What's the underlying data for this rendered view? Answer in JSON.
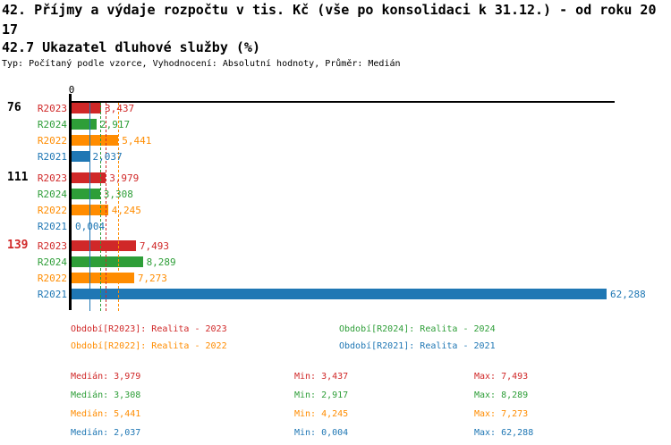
{
  "page": {
    "title": "42. Příjmy a výdaje rozpočtu v tis. Kč (vše po konsolidaci k 31.12.) - od roku 2017",
    "section_title": "42.7 Ukazatel dluhové služby (%)",
    "meta_line": "Typ: Počítaný podle vzorce, Vyhodnocení: Absolutní hodnoty, Průměr: Medián"
  },
  "series_colors": {
    "R2023": "#d02828",
    "R2024": "#2e9e38",
    "R2022": "#ff8c00",
    "R2021": "#1f77b4"
  },
  "chart_data": {
    "type": "bar",
    "orientation": "horizontal",
    "title": "42.7 Ukazatel dluhové služby (%)",
    "axis_origin_label": "0",
    "xlim": [
      0,
      63.5
    ],
    "categories": [
      "76",
      "111",
      "139"
    ],
    "category_label_colors": [
      "#000000",
      "#000000",
      "#d02828"
    ],
    "series": [
      "R2023",
      "R2024",
      "R2022",
      "R2021"
    ],
    "groups": [
      {
        "category": "76",
        "values": [
          {
            "series": "R2023",
            "value": 3.437,
            "label": "3,437"
          },
          {
            "series": "R2024",
            "value": 2.917,
            "label": "2,917"
          },
          {
            "series": "R2022",
            "value": 5.441,
            "label": "5,441"
          },
          {
            "series": "R2021",
            "value": 2.037,
            "label": "2,037"
          }
        ]
      },
      {
        "category": "111",
        "values": [
          {
            "series": "R2023",
            "value": 3.979,
            "label": "3,979"
          },
          {
            "series": "R2024",
            "value": 3.308,
            "label": "3,308"
          },
          {
            "series": "R2022",
            "value": 4.245,
            "label": "4,245"
          },
          {
            "series": "R2021",
            "value": 0.004,
            "label": "0,004"
          }
        ]
      },
      {
        "category": "139",
        "values": [
          {
            "series": "R2023",
            "value": 7.493,
            "label": "7,493"
          },
          {
            "series": "R2024",
            "value": 8.289,
            "label": "8,289"
          },
          {
            "series": "R2022",
            "value": 7.273,
            "label": "7,273"
          },
          {
            "series": "R2021",
            "value": 62.288,
            "label": "62,288"
          }
        ]
      }
    ],
    "median_lines": [
      {
        "series": "R2021",
        "value": 2.037
      },
      {
        "series": "R2024",
        "value": 3.308
      },
      {
        "series": "R2023",
        "value": 3.979
      },
      {
        "series": "R2022",
        "value": 5.441
      }
    ]
  },
  "legend": {
    "items": [
      {
        "text": "Období[R2023]: Realita - 2023",
        "color": "#d02828"
      },
      {
        "text": "Období[R2024]: Realita - 2024",
        "color": "#2e9e38"
      },
      {
        "text": "Období[R2022]: Realita - 2022",
        "color": "#ff8c00"
      },
      {
        "text": "Období[R2021]: Realita - 2021",
        "color": "#1f77b4"
      }
    ]
  },
  "stats": {
    "rows": [
      {
        "median": "Medián: 3,979",
        "min": "Min: 3,437",
        "max": "Max: 7,493",
        "color": "#d02828"
      },
      {
        "median": "Medián: 3,308",
        "min": "Min: 2,917",
        "max": "Max: 8,289",
        "color": "#2e9e38"
      },
      {
        "median": "Medián: 5,441",
        "min": "Min: 4,245",
        "max": "Max: 7,273",
        "color": "#ff8c00"
      },
      {
        "median": "Medián: 2,037",
        "min": "Min: 0,004",
        "max": "Max: 62,288",
        "color": "#1f77b4"
      }
    ]
  }
}
